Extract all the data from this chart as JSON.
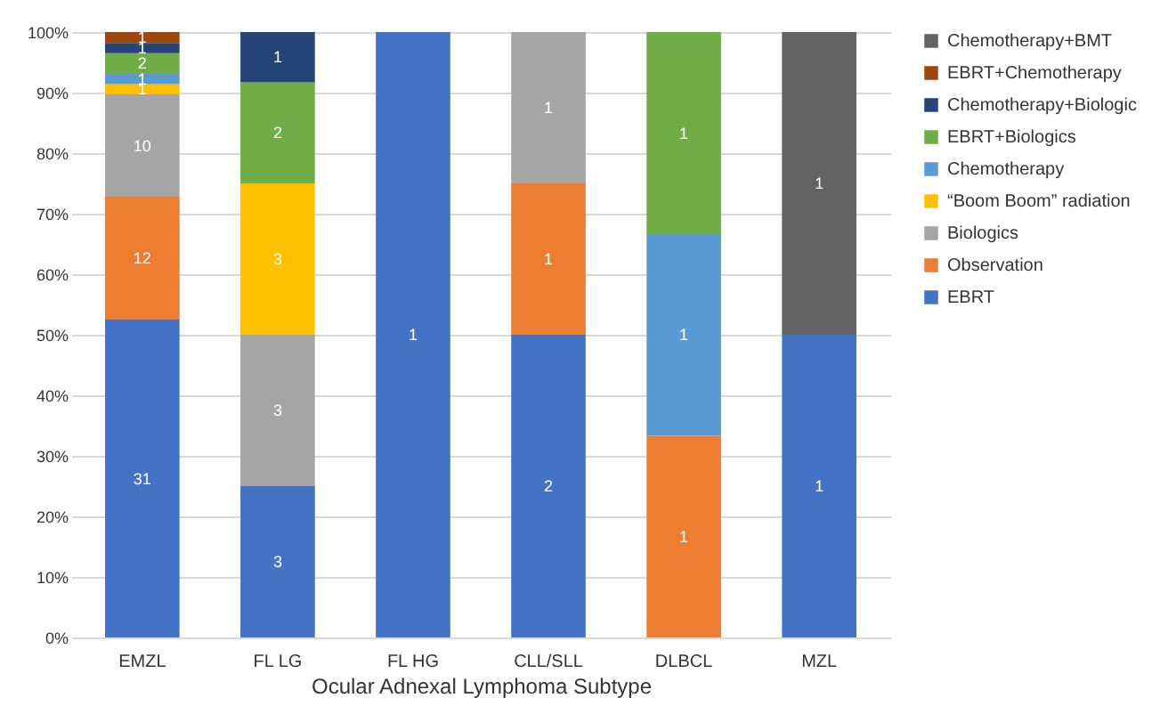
{
  "chart_data": {
    "type": "bar",
    "stacked": true,
    "xlabel": "Ocular Adnexal Lymphoma Subtype",
    "categories": [
      "EMZL",
      "FL LG",
      "FL HG",
      "CLL/SLL",
      "DLBCL",
      "MZL"
    ],
    "ylim": [
      0,
      100
    ],
    "yticks": [
      {
        "value": 0,
        "label": "0%"
      },
      {
        "value": 10,
        "label": "10%"
      },
      {
        "value": 20,
        "label": "20%"
      },
      {
        "value": 30,
        "label": "30%"
      },
      {
        "value": 40,
        "label": "40%"
      },
      {
        "value": 50,
        "label": "50%"
      },
      {
        "value": 60,
        "label": "60%"
      },
      {
        "value": 70,
        "label": "70%"
      },
      {
        "value": 80,
        "label": "80%"
      },
      {
        "value": 90,
        "label": "90%"
      },
      {
        "value": 100,
        "label": "100%"
      }
    ],
    "grid": "y",
    "legend": "right",
    "series": [
      {
        "name": "EBRT",
        "color": "#4472c4",
        "values": [
          52.5,
          25,
          100,
          50,
          null,
          50
        ]
      },
      {
        "name": "Observation",
        "color": "#ed7d31",
        "values": [
          20.3,
          null,
          null,
          25,
          33.3,
          null
        ]
      },
      {
        "name": "Biologics",
        "color": "#a5a5a5",
        "values": [
          16.9,
          25,
          null,
          25,
          null,
          null
        ]
      },
      {
        "name": "“Boom Boom” radiation",
        "color": "#ffc000",
        "values": [
          1.7,
          25,
          null,
          null,
          null,
          null
        ]
      },
      {
        "name": "Chemotherapy",
        "color": "#5b9bd5",
        "values": [
          1.7,
          null,
          null,
          null,
          33.3,
          null
        ]
      },
      {
        "name": "EBRT+Biologics",
        "color": "#70ad47",
        "values": [
          3.4,
          16.7,
          null,
          null,
          33.4,
          null
        ]
      },
      {
        "name": "Chemotherapy+Biologic",
        "color": "#264478",
        "values": [
          1.7,
          8.3,
          null,
          null,
          null,
          null
        ]
      },
      {
        "name": "EBRT+Chemotherapy",
        "color": "#9e480e",
        "values": [
          1.8,
          null,
          null,
          null,
          null,
          null
        ]
      },
      {
        "name": "Chemotherapy+BMT",
        "color": "#636363",
        "values": [
          null,
          null,
          null,
          null,
          null,
          50
        ]
      }
    ],
    "annotations": [
      "31",
      "12",
      "10",
      "1",
      "1",
      "2",
      "1",
      "1",
      "3",
      "3",
      "3",
      "2",
      "1",
      "1",
      "2",
      "1",
      "1",
      "1",
      "1",
      "1",
      "1",
      "1"
    ]
  }
}
